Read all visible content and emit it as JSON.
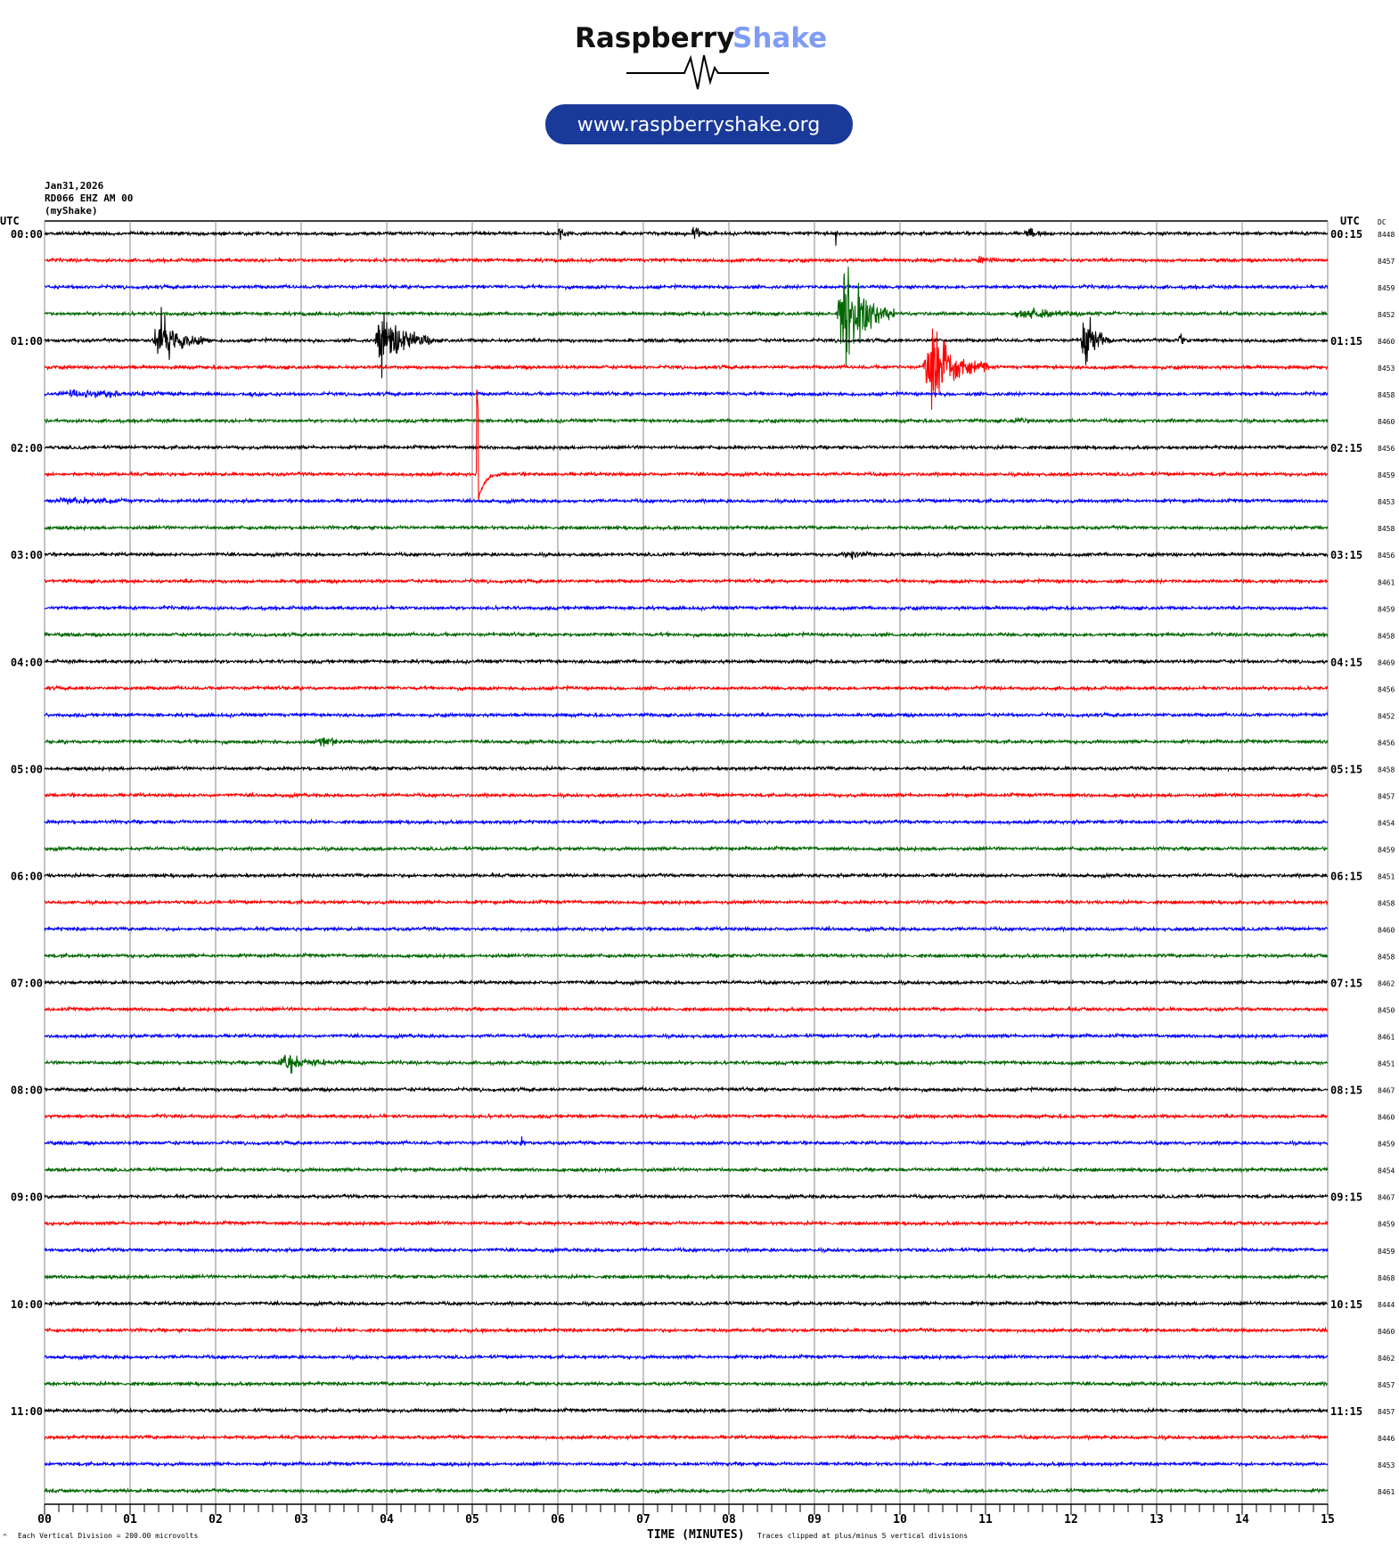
{
  "logo": {
    "brand_a": "Raspberry",
    "brand_b": "Shake",
    "url": "www.raspberryshake.org",
    "brand_b_color": "#7f9cf5",
    "pill_color": "#1a3a9a"
  },
  "header": {
    "date": "Jan31,2026",
    "station": "RD066 EHZ AM 00",
    "source": "(myShake)"
  },
  "chart_data": {
    "type": "line",
    "subtype": "helicorder",
    "left_axis_title": "UTC",
    "right_axis_title": "UTC",
    "dc_title": "DC",
    "left_time_labels": [
      "00:00",
      "01:00",
      "02:00",
      "03:00",
      "04:00",
      "05:00",
      "06:00",
      "07:00",
      "08:00",
      "09:00",
      "10:00",
      "11:00"
    ],
    "right_time_labels": [
      "00:15",
      "01:15",
      "02:15",
      "03:15",
      "04:15",
      "05:15",
      "06:15",
      "07:15",
      "08:15",
      "09:15",
      "10:15",
      "11:15"
    ],
    "dc_values": [
      "8448",
      "8457",
      "8459",
      "8452",
      "8460",
      "8453",
      "8458",
      "8460",
      "8456",
      "8459",
      "8453",
      "8458",
      "8456",
      "8461",
      "8459",
      "8458",
      "8469",
      "8456",
      "8452",
      "8456",
      "8458",
      "8457",
      "8454",
      "8459",
      "8451",
      "8458",
      "8460",
      "8458",
      "8462",
      "8450",
      "8461",
      "8451",
      "8467",
      "8460",
      "8459",
      "8454",
      "8467",
      "8459",
      "8459",
      "8468",
      "8444",
      "8460",
      "8462",
      "8457",
      "8457",
      "8446",
      "8453",
      "8461"
    ],
    "trace_colors": [
      "#000000",
      "#ff0000",
      "#0000ff",
      "#006600"
    ],
    "rows_per_hour": 4,
    "xlabel": "TIME (MINUTES)",
    "xlim": [
      0,
      15
    ],
    "x_ticks": [
      "00",
      "01",
      "02",
      "03",
      "04",
      "05",
      "06",
      "07",
      "08",
      "09",
      "10",
      "11",
      "12",
      "13",
      "14",
      "15"
    ],
    "minor_tick_seconds": 10,
    "grid": true,
    "scale_note": "Each Vertical Division =  200.00 microvolts",
    "clip_note": "Traces clipped at plus/minus 5 vertical divisions",
    "events": [
      {
        "row": 0,
        "start": 6.0,
        "end": 6.15,
        "amp": 0.6
      },
      {
        "row": 0,
        "start": 7.55,
        "end": 7.85,
        "amp": 0.4
      },
      {
        "row": 0,
        "start": 9.24,
        "end": 9.3,
        "amp": 0.9
      },
      {
        "row": 0,
        "start": 11.45,
        "end": 11.8,
        "amp": 0.3
      },
      {
        "row": 1,
        "start": 10.9,
        "end": 11.15,
        "amp": 0.3
      },
      {
        "row": 3,
        "start": 9.25,
        "end": 9.95,
        "amp": 2.8
      },
      {
        "row": 3,
        "start": 11.3,
        "end": 12.6,
        "amp": 0.3
      },
      {
        "row": 4,
        "start": 1.25,
        "end": 1.95,
        "amp": 1.3
      },
      {
        "row": 4,
        "start": 3.85,
        "end": 4.55,
        "amp": 1.8
      },
      {
        "row": 4,
        "start": 12.1,
        "end": 12.5,
        "amp": 1.6
      },
      {
        "row": 4,
        "start": 13.25,
        "end": 13.4,
        "amp": 0.4
      },
      {
        "row": 5,
        "start": 10.25,
        "end": 11.05,
        "amp": 2.2
      },
      {
        "row": 6,
        "start": 0.0,
        "end": 2.6,
        "amp": 0.2
      },
      {
        "row": 7,
        "start": 11.3,
        "end": 11.9,
        "amp": 0.15
      },
      {
        "row": 10,
        "start": 0.0,
        "end": 1.8,
        "amp": 0.2
      },
      {
        "row": 12,
        "start": 9.3,
        "end": 10.0,
        "amp": 0.3
      },
      {
        "row": 19,
        "start": 3.15,
        "end": 3.8,
        "amp": 0.3
      },
      {
        "row": 31,
        "start": 2.7,
        "end": 3.6,
        "amp": 0.5
      },
      {
        "row": 34,
        "start": 5.55,
        "end": 5.7,
        "amp": 0.3
      }
    ],
    "pulses": [
      {
        "row": 9,
        "at": 5.05,
        "amp": -3.3
      }
    ]
  }
}
